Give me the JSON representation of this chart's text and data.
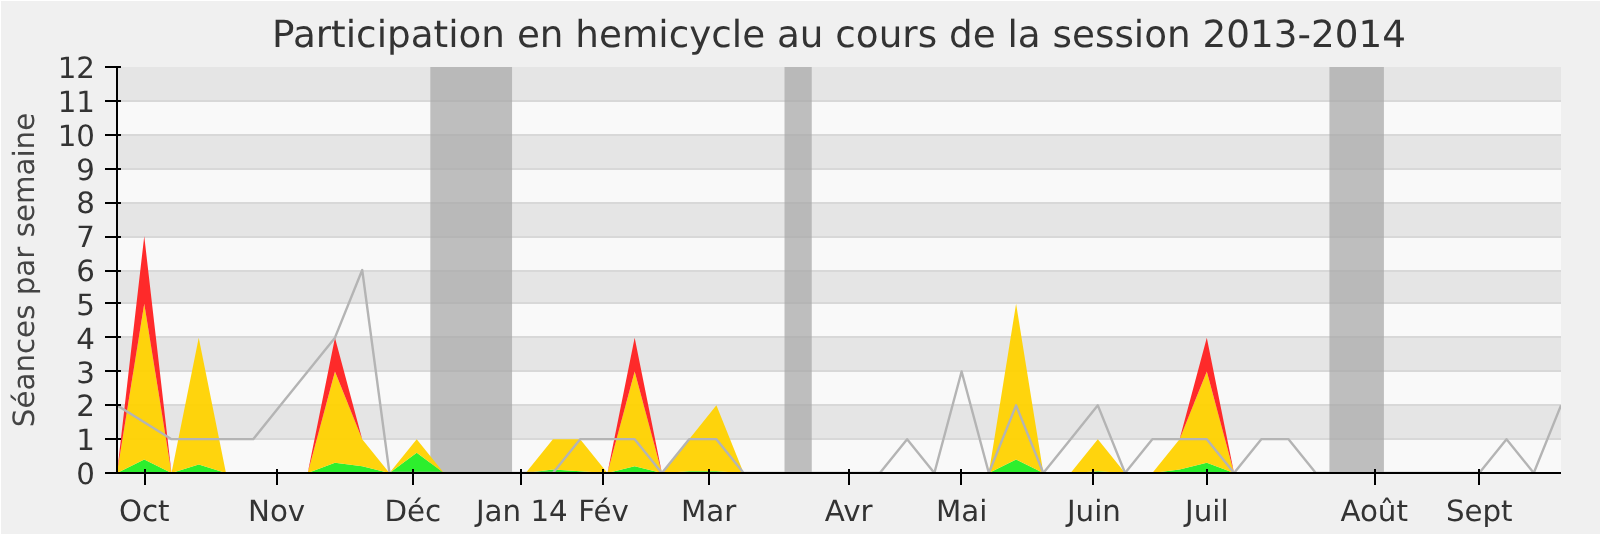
{
  "chart_data": {
    "type": "area",
    "stacked": true,
    "title": "Participation en hemicycle au cours de la session 2013-2014",
    "ylabel": "Séances par semaine",
    "x": [
      "2013-09-30",
      "2013-10-07",
      "2013-10-14",
      "2013-10-21",
      "2013-10-28",
      "2013-11-04",
      "2013-11-11",
      "2013-11-18",
      "2013-11-25",
      "2013-12-02",
      "2013-12-09",
      "2013-12-16",
      "2013-12-23",
      "2013-12-30",
      "2014-01-06",
      "2014-01-13",
      "2014-01-20",
      "2014-01-27",
      "2014-02-03",
      "2014-02-10",
      "2014-02-17",
      "2014-02-24",
      "2014-03-03",
      "2014-03-10",
      "2014-03-17",
      "2014-03-24",
      "2014-03-31",
      "2014-04-07",
      "2014-04-14",
      "2014-04-21",
      "2014-04-28",
      "2014-05-05",
      "2014-05-12",
      "2014-05-19",
      "2014-05-26",
      "2014-06-02",
      "2014-06-09",
      "2014-06-16",
      "2014-06-23",
      "2014-06-30",
      "2014-07-07",
      "2014-07-14",
      "2014-07-21",
      "2014-07-28",
      "2014-08-04",
      "2014-08-11",
      "2014-08-18",
      "2014-08-25",
      "2014-09-01",
      "2014-09-08",
      "2014-09-15",
      "2014-09-22",
      "2014-09-29",
      "2014-10-06"
    ],
    "series": [
      {
        "color": "#22ee22",
        "values": [
          0,
          0.4,
          0,
          0.25,
          0,
          0,
          0,
          0,
          0.3,
          0.2,
          0,
          0.6,
          0,
          0,
          0,
          0,
          0.1,
          0.05,
          0,
          0.2,
          0,
          0.05,
          0.05,
          0,
          0,
          0,
          0,
          0,
          0,
          0,
          0,
          0,
          0,
          0.4,
          0,
          0,
          0.05,
          0,
          0,
          0.1,
          0.3,
          0,
          0,
          0,
          0,
          0,
          0,
          0,
          0,
          0,
          0,
          0,
          0,
          0
        ]
      },
      {
        "color": "#ffd200",
        "values": [
          0,
          4.6,
          0,
          3.75,
          0,
          0,
          0,
          0,
          2.7,
          0.8,
          0,
          0.4,
          0,
          0,
          0,
          0,
          0.9,
          0.95,
          0,
          2.8,
          0,
          0.95,
          1.95,
          0,
          0,
          0,
          0,
          0,
          0,
          0,
          0,
          0,
          0,
          4.6,
          0,
          0,
          0.95,
          0,
          0,
          0.9,
          2.7,
          0,
          0,
          0,
          0,
          0,
          0,
          0,
          0,
          0,
          0,
          0,
          0,
          0
        ]
      },
      {
        "color": "#ff2020",
        "values": [
          0,
          2,
          0,
          0,
          0,
          0,
          0,
          0,
          1,
          0,
          0,
          0,
          0,
          0,
          0,
          0,
          0,
          0,
          0,
          1,
          0,
          0,
          0,
          0,
          0,
          0,
          0,
          0,
          0,
          0,
          0,
          0,
          0,
          0,
          0,
          0,
          0,
          0,
          0,
          0,
          1,
          0,
          0,
          0,
          0,
          0,
          0,
          0,
          0,
          0,
          0,
          0,
          0,
          0
        ]
      },
      {
        "type": "line",
        "color": "#b4b4b4",
        "values": [
          2,
          1.5,
          1,
          1,
          1,
          1,
          2,
          3,
          4,
          6,
          0,
          0,
          0,
          0,
          0,
          0,
          0,
          1,
          1,
          1,
          0,
          1,
          1,
          0,
          0,
          0,
          0,
          0,
          0,
          1,
          0,
          3,
          0,
          2,
          0,
          1,
          2,
          0,
          1,
          1,
          1,
          0,
          1,
          1,
          0,
          0,
          0,
          0,
          0,
          0,
          0,
          1,
          0,
          2
        ]
      }
    ],
    "xlim": [
      "2013-09-30",
      "2014-10-06"
    ],
    "ylim": [
      0,
      12
    ],
    "yticks": [
      0,
      1,
      2,
      3,
      4,
      5,
      6,
      7,
      8,
      9,
      10,
      11,
      12
    ],
    "xticks": [
      {
        "value": "2013-10-07",
        "label": "Oct"
      },
      {
        "value": "2013-11-10",
        "label": "Nov"
      },
      {
        "value": "2013-12-15",
        "label": "Déc"
      },
      {
        "value": "2014-01-12",
        "label": "Jan 14"
      },
      {
        "value": "2014-02-02",
        "label": "Fév"
      },
      {
        "value": "2014-03-01",
        "label": "Mar"
      },
      {
        "value": "2014-04-06",
        "label": "Avr"
      },
      {
        "value": "2014-05-05",
        "label": "Mai"
      },
      {
        "value": "2014-06-08",
        "label": "Juin"
      },
      {
        "value": "2014-07-07",
        "label": "Juil"
      },
      {
        "value": "2014-08-19",
        "label": "Août"
      },
      {
        "value": "2014-09-15",
        "label": "Sept"
      }
    ],
    "bands": [
      {
        "axis": "x",
        "from": "2013-12-19T12:00",
        "to": "2014-01-09T12:00",
        "color": "#aaaaaa"
      },
      {
        "axis": "x",
        "from": "2014-03-20T12:00",
        "to": "2014-03-27T12:00",
        "color": "#aaaaaa"
      },
      {
        "axis": "x",
        "from": "2014-08-07T12:00",
        "to": "2014-08-21T12:00",
        "color": "#aaaaaa"
      }
    ],
    "grid": "y",
    "marker": "none",
    "line_style": "solid"
  }
}
